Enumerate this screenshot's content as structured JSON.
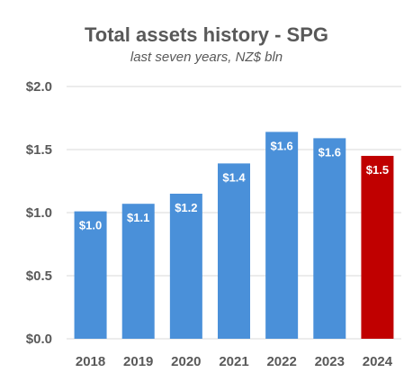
{
  "chart_data": {
    "type": "bar",
    "title": "Total assets history - SPG",
    "subtitle": "last seven years, NZ$ bln",
    "categories": [
      "2018",
      "2019",
      "2020",
      "2021",
      "2022",
      "2023",
      "2024"
    ],
    "values": [
      1.01,
      1.07,
      1.15,
      1.39,
      1.64,
      1.59,
      1.45
    ],
    "data_labels": [
      "$1.0",
      "$1.1",
      "$1.2",
      "$1.4",
      "$1.6",
      "$1.6",
      "$1.5"
    ],
    "y_ticks": [
      "$0.0",
      "$0.5",
      "$1.0",
      "$1.5",
      "$2.0"
    ],
    "y_tick_values": [
      0,
      0.5,
      1.0,
      1.5,
      2.0
    ],
    "ylim": [
      0,
      2.0
    ],
    "xlabel": "",
    "ylabel": "",
    "grid": true,
    "legend": "none",
    "colors": {
      "default_bar": "#4a90d9",
      "highlight_bar": "#c00000",
      "gridline": "#d9d9d9",
      "text": "#595959"
    },
    "highlight_index": 6
  }
}
